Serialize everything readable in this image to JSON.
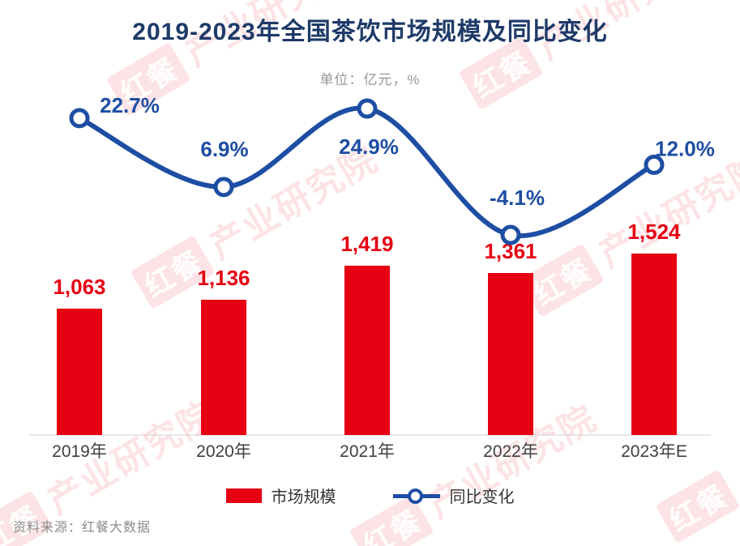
{
  "title": "2019-2023年全国茶饮市场规模及同比变化",
  "subtitle": "单位：亿元，%",
  "source": "资料来源：红餐大数据",
  "watermark": {
    "brand": "红餐",
    "name": "产业研究院"
  },
  "colors": {
    "bar": "#e60012",
    "line": "#1d4ea3",
    "title": "#1e3a68",
    "subtitle": "#979797",
    "axis_text": "#404040",
    "baseline": "#cfcfcf"
  },
  "legend": [
    {
      "label": "市场规模"
    },
    {
      "label": "同比变化"
    }
  ],
  "chart_data": {
    "type": "bar+line combo",
    "categories": [
      "2019年",
      "2020年",
      "2021年",
      "2022年",
      "2023年E"
    ],
    "series": [
      {
        "name": "市场规模",
        "type": "bar",
        "unit": "亿元",
        "values": [
          1063,
          1136,
          1419,
          1361,
          1524
        ],
        "labels": [
          "1,063",
          "1,136",
          "1,419",
          "1,361",
          "1,524"
        ]
      },
      {
        "name": "同比变化",
        "type": "line",
        "unit": "%",
        "values": [
          22.7,
          6.9,
          24.9,
          -4.1,
          12.0
        ],
        "labels": [
          "22.7%",
          "6.9%",
          "24.9%",
          "-4.1%",
          "12.0%"
        ]
      }
    ],
    "title": "2019-2023年全国茶饮市场规模及同比变化",
    "subtitle_units": "单位：亿元，%",
    "legend_position": "bottom",
    "grid": false,
    "bar_axis_min": 0,
    "line_label_format": "percent"
  }
}
